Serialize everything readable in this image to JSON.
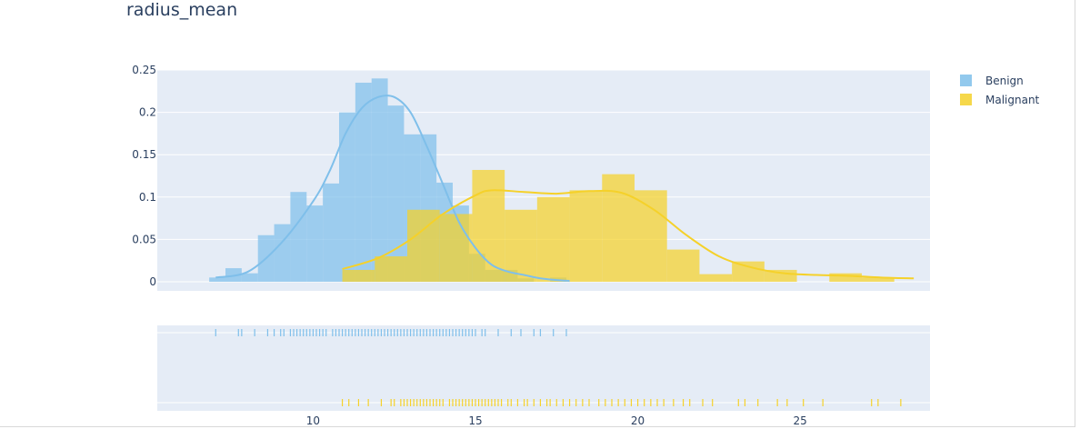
{
  "chart_data": {
    "title": "radius_mean",
    "type": "histogram_kde_rug",
    "xlim": [
      5.2,
      29.0
    ],
    "ylim": [
      0,
      0.25
    ],
    "x_ticks": [
      10,
      15,
      20,
      25
    ],
    "y_ticks": [
      0,
      0.05,
      0.1,
      0.15,
      0.2,
      0.25
    ],
    "y_tick_labels": [
      "0",
      "0.05",
      "0.1",
      "0.15",
      "0.2",
      "0.25"
    ],
    "legend_position": "top-right",
    "grid": true,
    "series": [
      {
        "name": "Benign",
        "color": "#7fbfea",
        "bin_edges": [
          6.8,
          7.3,
          7.8,
          8.3,
          8.8,
          9.3,
          9.8,
          10.3,
          10.8,
          11.3,
          11.8,
          12.3,
          12.8,
          13.3,
          13.8,
          14.3,
          14.8,
          15.3,
          15.8,
          16.3,
          16.8,
          17.3,
          17.8
        ],
        "densities": [
          0.005,
          0.016,
          0.01,
          0.055,
          0.068,
          0.106,
          0.09,
          0.116,
          0.2,
          0.235,
          0.24,
          0.208,
          0.174,
          0.174,
          0.117,
          0.09,
          0.033,
          0.014,
          0.014,
          0.004,
          0.0,
          0.005
        ],
        "kde": [
          [
            7.0,
            0.005
          ],
          [
            8.0,
            0.012
          ],
          [
            9.0,
            0.045
          ],
          [
            10.0,
            0.095
          ],
          [
            10.5,
            0.13
          ],
          [
            11.0,
            0.175
          ],
          [
            11.5,
            0.205
          ],
          [
            12.0,
            0.218
          ],
          [
            12.5,
            0.218
          ],
          [
            13.0,
            0.2
          ],
          [
            13.5,
            0.16
          ],
          [
            14.0,
            0.115
          ],
          [
            14.5,
            0.07
          ],
          [
            15.0,
            0.04
          ],
          [
            15.5,
            0.02
          ],
          [
            16.0,
            0.012
          ],
          [
            16.5,
            0.008
          ],
          [
            17.0,
            0.004
          ],
          [
            17.5,
            0.002
          ],
          [
            17.9,
            0.001
          ]
        ],
        "rug_x": [
          7.0,
          7.7,
          7.8,
          8.2,
          8.6,
          8.8,
          9.0,
          9.1,
          9.3,
          9.4,
          9.5,
          9.6,
          9.7,
          9.8,
          9.9,
          10.0,
          10.1,
          10.2,
          10.3,
          10.4,
          10.6,
          10.7,
          10.8,
          10.9,
          11.0,
          11.1,
          11.2,
          11.3,
          11.4,
          11.5,
          11.6,
          11.7,
          11.8,
          11.9,
          12.0,
          12.1,
          12.2,
          12.3,
          12.4,
          12.5,
          12.6,
          12.7,
          12.8,
          12.9,
          13.0,
          13.1,
          13.2,
          13.3,
          13.4,
          13.5,
          13.6,
          13.7,
          13.8,
          13.9,
          14.0,
          14.1,
          14.2,
          14.3,
          14.4,
          14.5,
          14.6,
          14.7,
          14.8,
          14.9,
          15.0,
          15.2,
          15.3,
          15.7,
          16.1,
          16.4,
          16.8,
          17.0,
          17.4,
          17.8
        ]
      },
      {
        "name": "Malignant",
        "color": "#f5d12a",
        "bin_edges": [
          10.9,
          11.9,
          12.9,
          13.9,
          14.9,
          15.9,
          16.9,
          17.9,
          18.9,
          19.9,
          20.9,
          21.9,
          22.9,
          23.9,
          24.9,
          25.9,
          26.9,
          27.9,
          28.9
        ],
        "densities": [
          0.014,
          0.03,
          0.085,
          0.08,
          0.132,
          0.085,
          0.1,
          0.108,
          0.127,
          0.108,
          0.038,
          0.009,
          0.024,
          0.014,
          0.0,
          0.01,
          0.005,
          0.0
        ],
        "kde": [
          [
            10.9,
            0.015
          ],
          [
            12.0,
            0.028
          ],
          [
            13.0,
            0.05
          ],
          [
            14.0,
            0.08
          ],
          [
            15.0,
            0.102
          ],
          [
            15.5,
            0.108
          ],
          [
            16.5,
            0.106
          ],
          [
            17.5,
            0.104
          ],
          [
            18.5,
            0.107
          ],
          [
            19.5,
            0.105
          ],
          [
            20.5,
            0.085
          ],
          [
            21.5,
            0.055
          ],
          [
            22.5,
            0.03
          ],
          [
            23.5,
            0.017
          ],
          [
            24.5,
            0.01
          ],
          [
            25.5,
            0.008
          ],
          [
            26.5,
            0.007
          ],
          [
            27.5,
            0.005
          ],
          [
            28.5,
            0.004
          ]
        ],
        "rug_x": [
          10.9,
          11.1,
          11.4,
          11.7,
          12.1,
          12.4,
          12.5,
          12.7,
          12.8,
          12.9,
          13.0,
          13.1,
          13.2,
          13.3,
          13.4,
          13.5,
          13.6,
          13.7,
          13.8,
          13.9,
          14.0,
          14.2,
          14.3,
          14.4,
          14.5,
          14.6,
          14.7,
          14.8,
          14.9,
          15.0,
          15.1,
          15.2,
          15.3,
          15.4,
          15.5,
          15.6,
          15.7,
          15.8,
          16.0,
          16.1,
          16.3,
          16.5,
          16.6,
          16.8,
          17.0,
          17.2,
          17.3,
          17.5,
          17.7,
          17.9,
          18.1,
          18.3,
          18.5,
          18.8,
          19.0,
          19.2,
          19.4,
          19.6,
          19.8,
          20.0,
          20.2,
          20.4,
          20.6,
          20.8,
          21.1,
          21.4,
          21.6,
          22.0,
          22.3,
          23.1,
          23.3,
          23.7,
          24.3,
          24.6,
          25.1,
          25.7,
          27.2,
          27.4,
          28.1
        ]
      }
    ]
  }
}
